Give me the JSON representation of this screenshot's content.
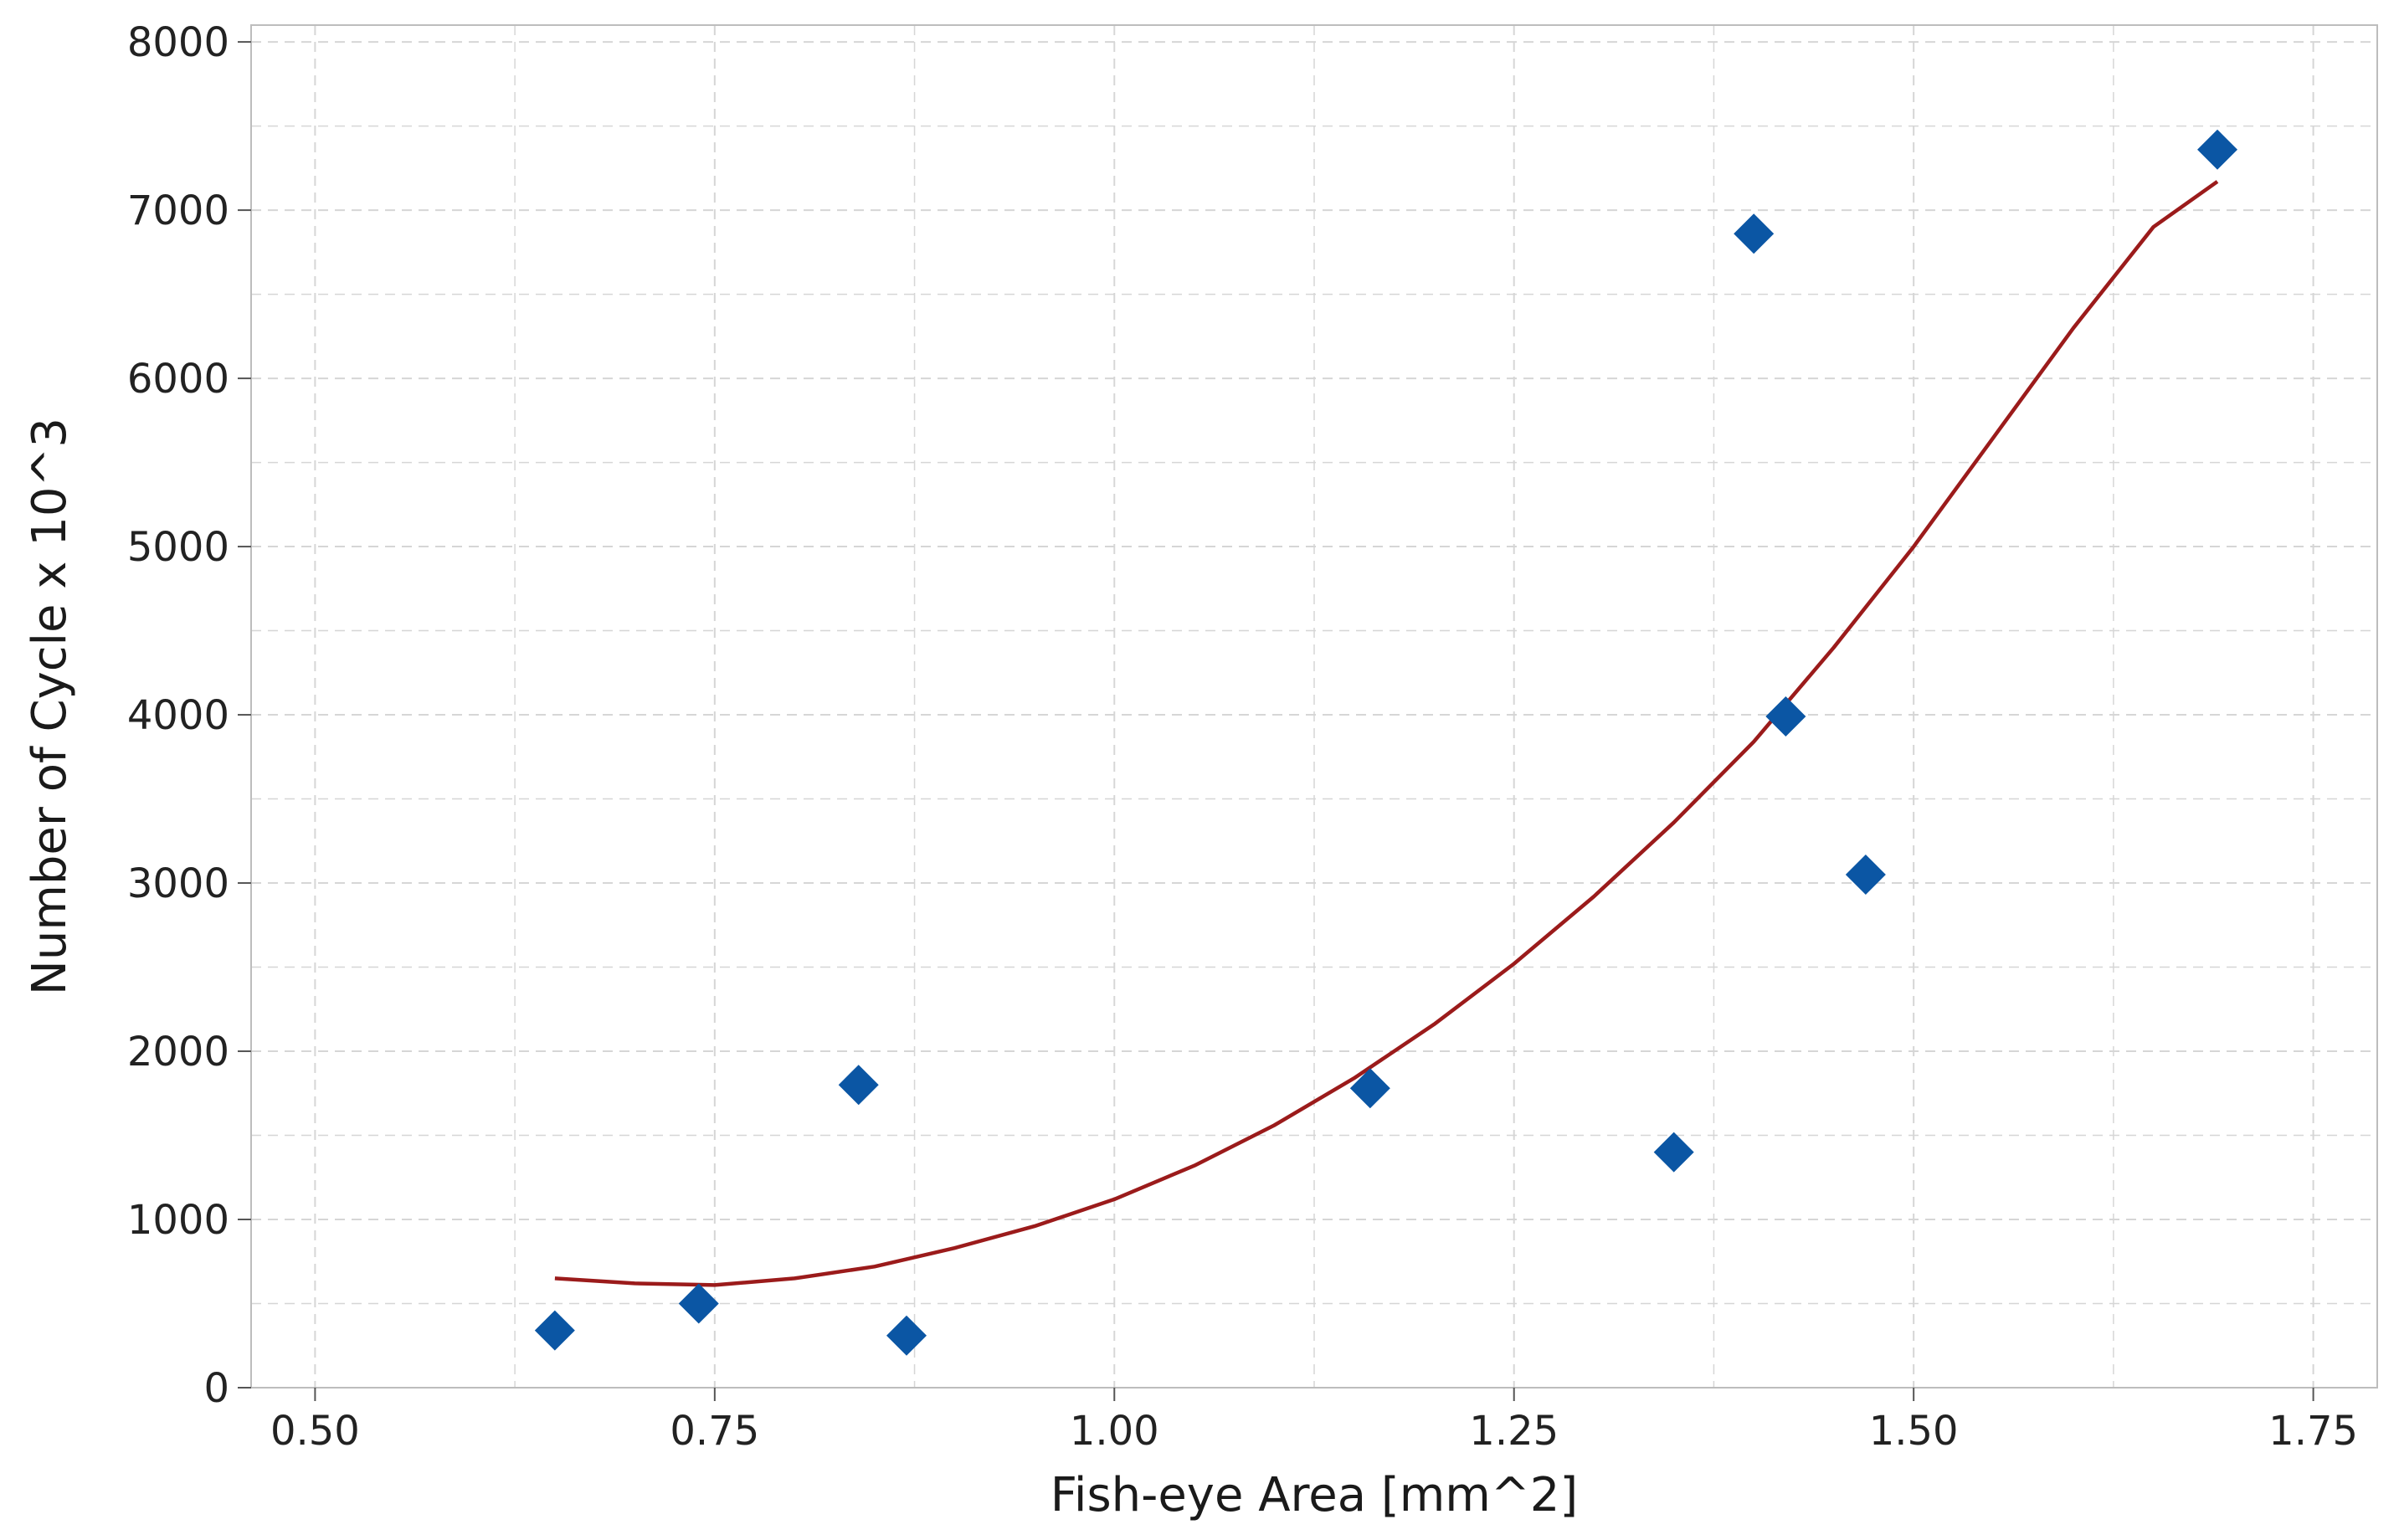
{
  "chart_data": {
    "type": "scatter",
    "title": "",
    "xlabel": "Fish-eye Area [mm^2]",
    "ylabel": "Number of Cycle x 10^3",
    "xlim": [
      0.46,
      1.79
    ],
    "ylim": [
      0,
      8100
    ],
    "x_ticks": [
      0.5,
      0.75,
      1.0,
      1.25,
      1.5,
      1.75
    ],
    "x_tick_labels": [
      "0.50",
      "0.75",
      "1.00",
      "1.25",
      "1.50",
      "1.75"
    ],
    "y_ticks": [
      0,
      1000,
      2000,
      3000,
      4000,
      5000,
      6000,
      7000,
      8000
    ],
    "y_tick_labels": [
      "0",
      "1000",
      "2000",
      "3000",
      "4000",
      "5000",
      "6000",
      "7000",
      "8000"
    ],
    "grid": true,
    "legend": "none",
    "colors": {
      "points": "#0b56a4",
      "fit": "#9b1b1b",
      "grid": "#d6d6d6",
      "frame": "#bdbdbd"
    },
    "series": [
      {
        "kind": "points",
        "marker": "diamond",
        "x": [
          0.65,
          0.74,
          0.84,
          0.87,
          1.16,
          1.35,
          1.4,
          1.42,
          1.47,
          1.69
        ],
        "y": [
          340,
          500,
          1800,
          310,
          1780,
          1400,
          6860,
          3990,
          3050,
          7360
        ]
      },
      {
        "kind": "fit",
        "line": "quadratic",
        "x": [
          0.65,
          0.7,
          0.75,
          0.8,
          0.85,
          0.9,
          0.95,
          1.0,
          1.05,
          1.1,
          1.15,
          1.2,
          1.25,
          1.3,
          1.35,
          1.4,
          1.45,
          1.5,
          1.55,
          1.6,
          1.65,
          1.69
        ],
        "y": [
          650,
          620,
          610,
          650,
          720,
          830,
          960,
          1120,
          1320,
          1560,
          1840,
          2160,
          2520,
          2920,
          3360,
          3840,
          4400,
          5000,
          5650,
          6300,
          6900,
          7170
        ]
      }
    ]
  }
}
